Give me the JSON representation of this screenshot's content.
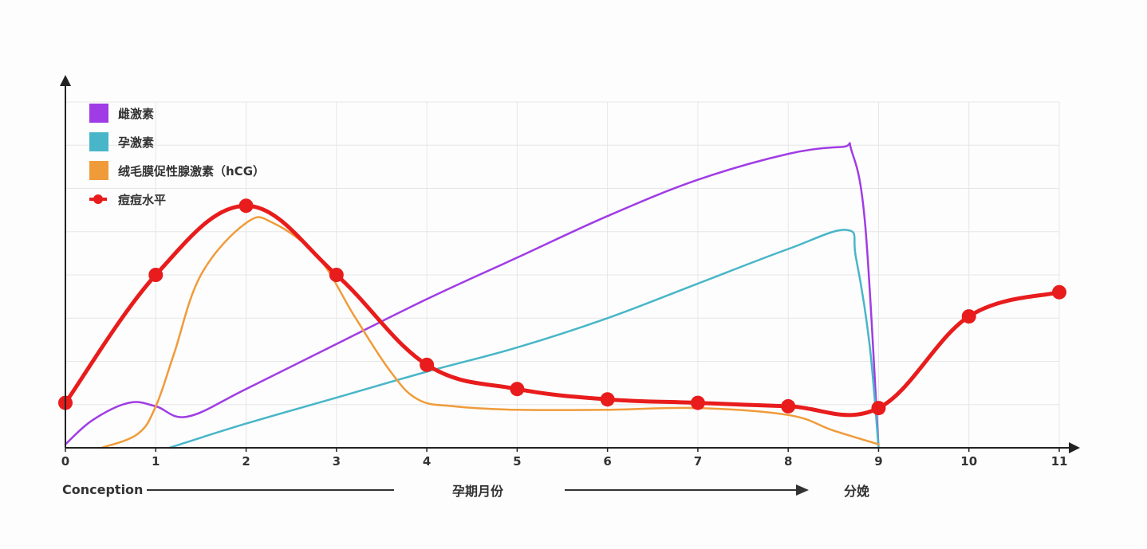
{
  "chart_data": {
    "type": "line",
    "x_ticks": [
      "0",
      "1",
      "2",
      "3",
      "4",
      "5",
      "6",
      "7",
      "8",
      "9",
      "10",
      "11"
    ],
    "xlim": [
      0,
      11
    ],
    "ylim": [
      0,
      100
    ],
    "y_tick_labels": false,
    "grid": true,
    "legend_position": "top-left",
    "captions": {
      "left": "Conception",
      "center": "孕期月份",
      "right": "分娩"
    },
    "series": [
      {
        "name": "雌激素",
        "color": "#a03ce6",
        "marker": false,
        "points": [
          [
            0,
            1
          ],
          [
            0.3,
            8
          ],
          [
            0.7,
            13
          ],
          [
            1,
            12
          ],
          [
            1.35,
            9
          ],
          [
            2,
            17
          ],
          [
            3,
            30
          ],
          [
            4,
            43
          ],
          [
            5,
            55
          ],
          [
            6,
            67
          ],
          [
            7,
            77.5
          ],
          [
            8,
            85
          ],
          [
            8.6,
            87
          ],
          [
            8.7,
            86
          ],
          [
            8.85,
            65
          ],
          [
            9,
            0
          ]
        ]
      },
      {
        "name": "孕激素",
        "color": "#48b6c8",
        "marker": false,
        "points": [
          [
            1.15,
            0
          ],
          [
            2,
            7
          ],
          [
            3,
            14.5
          ],
          [
            4,
            22
          ],
          [
            5,
            29
          ],
          [
            6,
            37.5
          ],
          [
            7,
            47.5
          ],
          [
            8,
            57.5
          ],
          [
            8.65,
            63
          ],
          [
            8.75,
            55
          ],
          [
            8.9,
            30
          ],
          [
            9,
            0
          ]
        ]
      },
      {
        "name": "绒毛膜促性腺激素（hCG）",
        "color": "#f09b3a",
        "marker": false,
        "points": [
          [
            0.4,
            0
          ],
          [
            0.8,
            4
          ],
          [
            1.0,
            12
          ],
          [
            1.2,
            27
          ],
          [
            1.5,
            50
          ],
          [
            2.0,
            65
          ],
          [
            2.3,
            65
          ],
          [
            2.8,
            55
          ],
          [
            3.2,
            38
          ],
          [
            3.6,
            22
          ],
          [
            3.9,
            14
          ],
          [
            4.3,
            12
          ],
          [
            5,
            11
          ],
          [
            6,
            11
          ],
          [
            7,
            11.5
          ],
          [
            8,
            9.5
          ],
          [
            8.5,
            5
          ],
          [
            9,
            1
          ]
        ]
      },
      {
        "name": "痘痘水平",
        "color": "#e81c1c",
        "marker": true,
        "points": [
          [
            0,
            13
          ],
          [
            1,
            50
          ],
          [
            2,
            70
          ],
          [
            3,
            50
          ],
          [
            4,
            24
          ],
          [
            5,
            17
          ],
          [
            6,
            14
          ],
          [
            7,
            13
          ],
          [
            8,
            12
          ],
          [
            9,
            11.5
          ],
          [
            10,
            38
          ],
          [
            11,
            45
          ]
        ]
      }
    ]
  }
}
